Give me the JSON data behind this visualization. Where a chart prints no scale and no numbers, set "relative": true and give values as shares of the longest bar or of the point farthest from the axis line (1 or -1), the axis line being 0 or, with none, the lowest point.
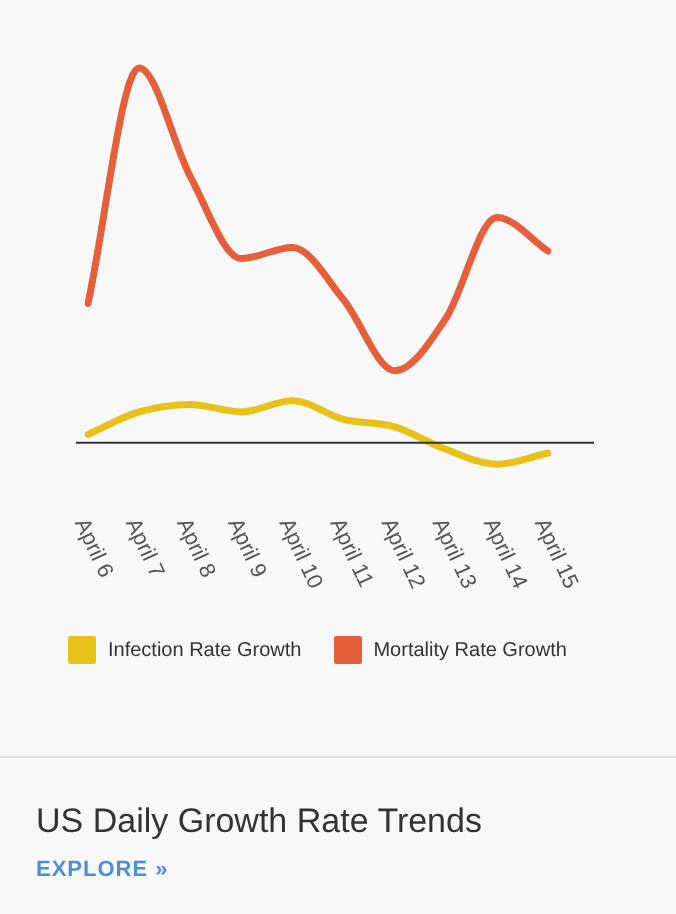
{
  "chart_data": {
    "type": "line",
    "relative": true,
    "title": "US Daily Growth Rate Trends",
    "annotations": [
      "EXPLORE »"
    ],
    "legend": "bottom",
    "grid": false,
    "marker": "none",
    "categories": [
      "April 6",
      "April 7",
      "April 8",
      "April 9",
      "April 10",
      "April 11",
      "April 12",
      "April 13",
      "April 14",
      "April 15"
    ],
    "series": [
      {
        "name": "Infection Rate Growth",
        "color": "#e8c21a",
        "values": [
          0.02,
          0.08,
          0.1,
          0.08,
          0.11,
          0.06,
          0.04,
          -0.02,
          -0.06,
          -0.03
        ]
      },
      {
        "name": "Mortality Rate Growth",
        "color": "#e5603a",
        "values": [
          0.37,
          1,
          0.71,
          0.49,
          0.52,
          0.38,
          0.19,
          0.33,
          0.6,
          0.51
        ]
      }
    ]
  }
}
